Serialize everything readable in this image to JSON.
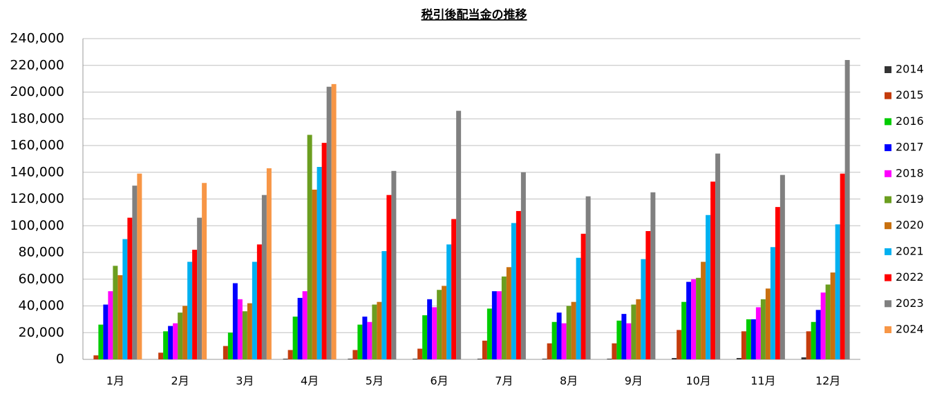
{
  "chart_data": {
    "type": "bar",
    "title": "税引後配当金の推移",
    "categories": [
      "1月",
      "2月",
      "3月",
      "4月",
      "5月",
      "6月",
      "7月",
      "8月",
      "9月",
      "10月",
      "11月",
      "12月"
    ],
    "series": [
      {
        "name": "2014",
        "color": "#333333",
        "values": [
          0,
          0,
          0,
          500,
          500,
          500,
          500,
          500,
          500,
          1000,
          1000,
          1500
        ]
      },
      {
        "name": "2015",
        "color": "#c43c0c",
        "values": [
          3000,
          5000,
          10000,
          7000,
          7000,
          8000,
          14000,
          12000,
          12000,
          22000,
          21000,
          21000
        ]
      },
      {
        "name": "2016",
        "color": "#00cc00",
        "values": [
          26000,
          21000,
          20000,
          32000,
          26000,
          33000,
          38000,
          28000,
          29000,
          43000,
          30000,
          28000
        ]
      },
      {
        "name": "2017",
        "color": "#0000ff",
        "values": [
          41000,
          25000,
          57000,
          46000,
          32000,
          45000,
          51000,
          35000,
          34000,
          58000,
          30000,
          37000
        ]
      },
      {
        "name": "2018",
        "color": "#ff00ff",
        "values": [
          51000,
          27000,
          45000,
          51000,
          28000,
          39000,
          51000,
          27000,
          27000,
          60000,
          39000,
          50000
        ]
      },
      {
        "name": "2019",
        "color": "#6b9e1f",
        "values": [
          70000,
          35000,
          36000,
          168000,
          41000,
          52000,
          62000,
          40000,
          41000,
          61000,
          45000,
          56000
        ]
      },
      {
        "name": "2020",
        "color": "#c8700f",
        "values": [
          63000,
          40000,
          42000,
          127000,
          43000,
          55000,
          69000,
          43000,
          45000,
          73000,
          53000,
          65000
        ]
      },
      {
        "name": "2021",
        "color": "#00b0f0",
        "values": [
          90000,
          73000,
          73000,
          144000,
          81000,
          86000,
          102000,
          76000,
          75000,
          108000,
          84000,
          101000
        ]
      },
      {
        "name": "2022",
        "color": "#ff0000",
        "values": [
          106000,
          82000,
          86000,
          162000,
          123000,
          105000,
          111000,
          94000,
          96000,
          133000,
          114000,
          139000
        ]
      },
      {
        "name": "2023",
        "color": "#808080",
        "values": [
          130000,
          106000,
          123000,
          204000,
          141000,
          186000,
          140000,
          122000,
          125000,
          154000,
          138000,
          224000
        ]
      },
      {
        "name": "2024",
        "color": "#f79646",
        "values": [
          139000,
          132000,
          143000,
          206000,
          null,
          null,
          null,
          null,
          null,
          null,
          null,
          null
        ]
      }
    ],
    "ylim": [
      0,
      240000
    ],
    "yticks": [
      0,
      {
        "value": 20000,
        "label": "20,000"
      },
      {
        "value": 40000,
        "label": "40,000"
      },
      {
        "value": 60000,
        "label": "60,000"
      },
      {
        "value": 80000,
        "label": "80,000"
      },
      {
        "value": 100000,
        "label": "100,000"
      },
      {
        "value": 120000,
        "label": "120,000"
      },
      {
        "value": 140000,
        "label": "140,000"
      },
      {
        "value": 160000,
        "label": "160,000"
      },
      {
        "value": 180000,
        "label": "180,000"
      },
      {
        "value": 200000,
        "label": "200,000"
      },
      {
        "value": 220000,
        "label": "220,000"
      },
      {
        "value": 240000,
        "label": "240,000"
      }
    ],
    "grid": true,
    "legend": "right"
  }
}
